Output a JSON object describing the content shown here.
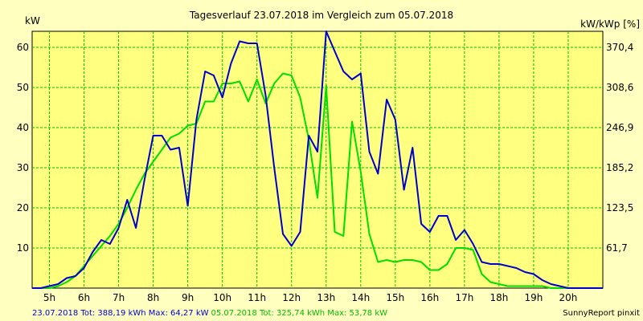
{
  "chart_data": {
    "type": "line",
    "title": "Tagesverlauf 23.07.2018 im Vergleich zum 05.07.2018",
    "ylabel_left": "kW",
    "ylabel_right": "kW/kWp [%]",
    "xlim": [
      4.5,
      21.0
    ],
    "ylim": [
      0,
      64
    ],
    "x_ticks": [
      5,
      6,
      7,
      8,
      9,
      10,
      11,
      12,
      13,
      14,
      15,
      16,
      17,
      18,
      19,
      20
    ],
    "x_tick_labels": [
      "5h",
      "6h",
      "7h",
      "8h",
      "9h",
      "10h",
      "11h",
      "12h",
      "13h",
      "14h",
      "15h",
      "16h",
      "17h",
      "18h",
      "19h",
      "20h"
    ],
    "y_ticks_left": [
      10,
      20,
      30,
      40,
      50,
      60
    ],
    "y_ticks_right": [
      {
        "value": 10,
        "label": "61,7"
      },
      {
        "value": 20,
        "label": "123,5"
      },
      {
        "value": 30,
        "label": "185,2"
      },
      {
        "value": 40,
        "label": "246,9"
      },
      {
        "value": 50,
        "label": "308,6"
      },
      {
        "value": 60,
        "label": "370,4"
      }
    ],
    "grid": true,
    "background_color": "#FFFFC0",
    "plot_background_color": "#FFFF80",
    "grid_color": "#00C000",
    "series": [
      {
        "color": "#0000CC",
        "x": [
          4.5,
          4.75,
          5.0,
          5.25,
          5.5,
          5.75,
          6.0,
          6.25,
          6.5,
          6.75,
          7.0,
          7.25,
          7.5,
          7.75,
          8.0,
          8.25,
          8.5,
          8.75,
          9.0,
          9.25,
          9.5,
          9.75,
          10.0,
          10.25,
          10.5,
          10.75,
          11.0,
          11.25,
          11.5,
          11.75,
          12.0,
          12.25,
          12.5,
          12.75,
          13.0,
          13.25,
          13.5,
          13.75,
          14.0,
          14.25,
          14.5,
          14.75,
          15.0,
          15.25,
          15.5,
          15.75,
          16.0,
          16.25,
          16.5,
          16.75,
          17.0,
          17.25,
          17.5,
          17.75,
          18.0,
          18.25,
          18.5,
          18.75,
          19.0,
          19.25,
          19.5,
          19.75,
          20.0,
          20.25,
          20.5,
          20.75,
          21.0
        ],
        "y": [
          0,
          0,
          0.5,
          1,
          2.5,
          3,
          5,
          9,
          12,
          11,
          15,
          22,
          15,
          27,
          38,
          38,
          34.5,
          35,
          20.5,
          42,
          54,
          53,
          47.5,
          56,
          61.5,
          61,
          61,
          48,
          30,
          13.5,
          10.5,
          14,
          38,
          34,
          64,
          59,
          54,
          52,
          53.5,
          34,
          28.5,
          47,
          42,
          24.5,
          35,
          16,
          14,
          18,
          18,
          12,
          14.5,
          11,
          6.5,
          6,
          6,
          5.5,
          5,
          4,
          3.5,
          2,
          1,
          0.5,
          0,
          0,
          0,
          0,
          0
        ]
      },
      {
        "color": "#00DD00",
        "x": [
          4.5,
          4.75,
          5.0,
          5.25,
          5.5,
          5.75,
          6.0,
          6.25,
          6.5,
          6.75,
          7.0,
          7.25,
          7.5,
          7.75,
          8.0,
          8.25,
          8.5,
          8.75,
          9.0,
          9.25,
          9.5,
          9.75,
          10.0,
          10.25,
          10.5,
          10.75,
          11.0,
          11.25,
          11.5,
          11.75,
          12.0,
          12.25,
          12.5,
          12.75,
          13.0,
          13.25,
          13.5,
          13.75,
          14.0,
          14.25,
          14.5,
          14.75,
          15.0,
          15.25,
          15.5,
          15.75,
          16.0,
          16.25,
          16.5,
          16.75,
          17.0,
          17.25,
          17.5,
          17.75,
          18.0,
          18.25,
          18.5,
          18.75,
          19.0,
          19.25,
          19.5,
          19.75,
          20.0,
          20.25,
          20.5,
          20.75,
          21.0
        ],
        "y": [
          0,
          0,
          0,
          0.5,
          1.5,
          3,
          5.5,
          8,
          10.5,
          13,
          16,
          20,
          24.5,
          28.5,
          31.5,
          34.5,
          37.5,
          38.5,
          40.5,
          41,
          46.5,
          46.5,
          51,
          51,
          51.5,
          46.5,
          52,
          46,
          51,
          53.5,
          53,
          47.5,
          37,
          22.5,
          50.5,
          14,
          13,
          41.5,
          29,
          13.5,
          6.5,
          7,
          6.5,
          7,
          7,
          6.5,
          4.5,
          4.5,
          6,
          10,
          10,
          9.5,
          3.5,
          1.5,
          1,
          0.5,
          0.5,
          0.5,
          0.5,
          0.5,
          0,
          0,
          0,
          0,
          0,
          0,
          0
        ]
      }
    ]
  },
  "footer": {
    "series1_label": "23.07.2018 Tot: 388,19 kWh Max: 64,27 kW",
    "series2_label": "05.07.2018 Tot: 325,74 kWh Max: 53,78 kW",
    "brand": "SunnyReport pinxit"
  }
}
